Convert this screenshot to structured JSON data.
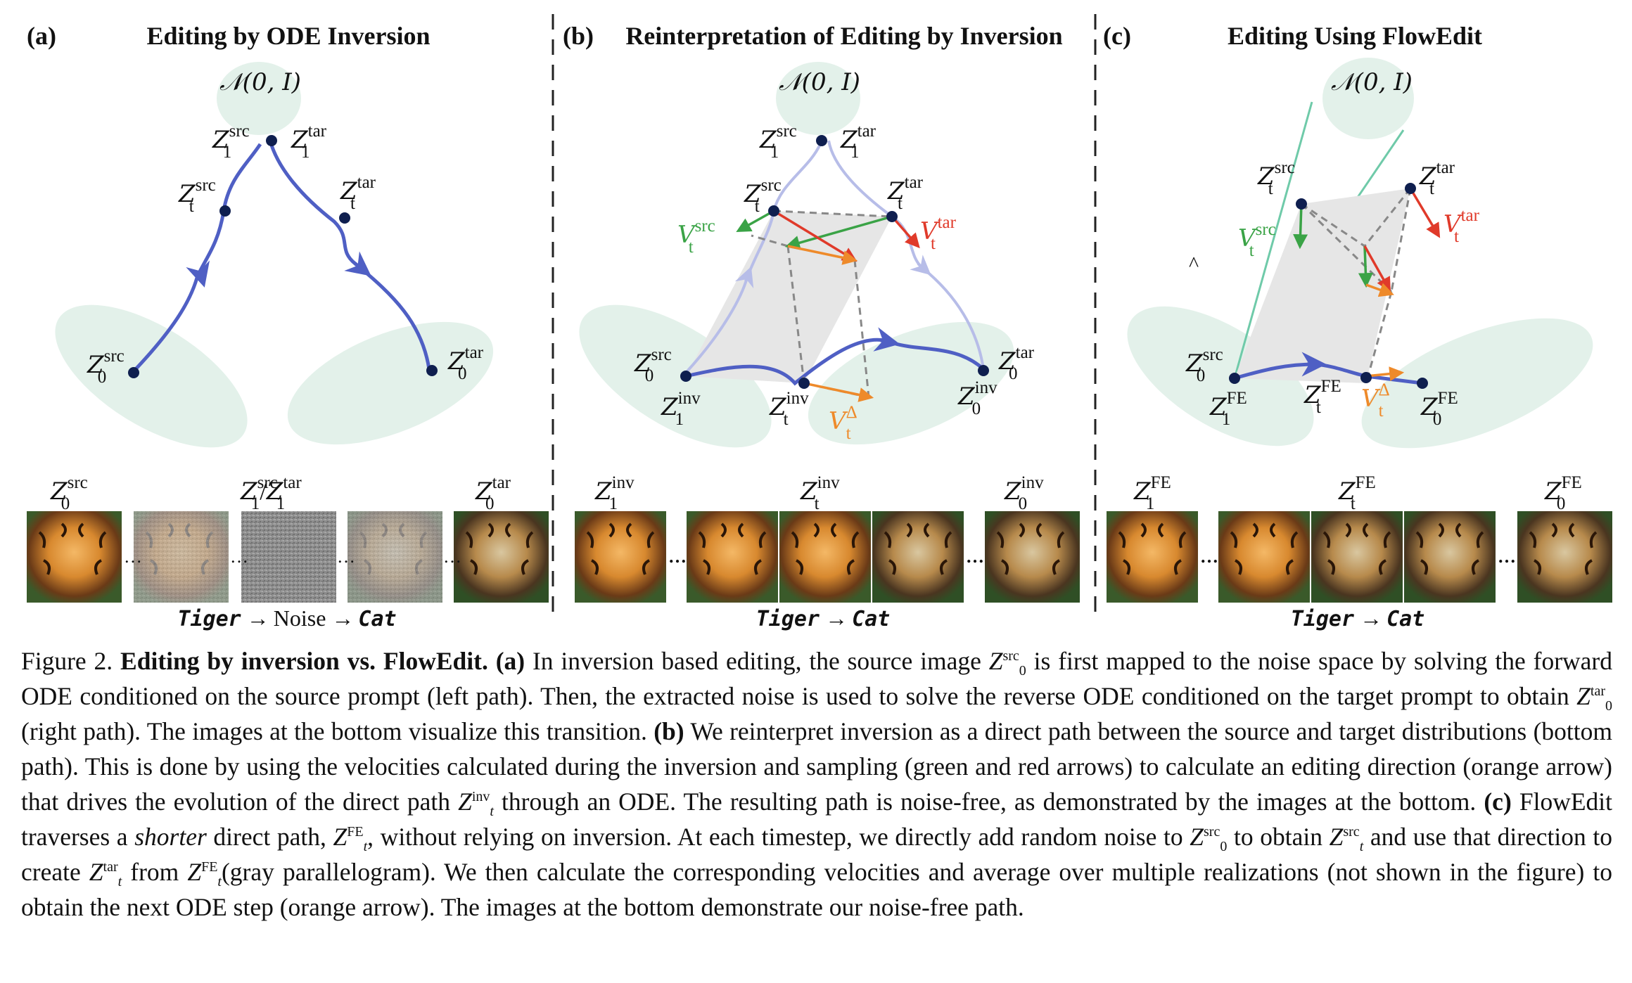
{
  "panels": [
    {
      "tag": "(a)",
      "title": "Editing by ODE Inversion"
    },
    {
      "tag": "(b)",
      "title": "Reinterpretation of Editing by Inversion"
    },
    {
      "tag": "(c)",
      "title": "Editing Using FlowEdit"
    }
  ],
  "noise_dist": "𝒩(0, I)",
  "symbols": {
    "Z": "Z",
    "V": "V",
    "slash": "/",
    "src": "src",
    "tar": "tar",
    "inv": "inv",
    "FE": "FE",
    "delta": "Δ",
    "t": "t",
    "zero": "0",
    "one": "1"
  },
  "prompts": {
    "a": {
      "source": "Tiger",
      "middle": "Noise",
      "target": "Cat",
      "arrow": "→"
    },
    "b": {
      "source": "Tiger",
      "target": "Cat",
      "arrow": "→"
    },
    "c": {
      "source": "Tiger",
      "target": "Cat",
      "arrow": "→"
    }
  },
  "caption": {
    "label": "Figure 2.",
    "bold_title": "Editing by inversion vs. FlowEdit.",
    "a_tag": "(a)",
    "a_text_1": "In inversion based editing, the source image",
    "a_text_2": "is first mapped to the noise space by solving the forward ODE conditioned on the source prompt (left path). Then, the extracted noise is used to solve the reverse ODE conditioned on the target prompt to obtain",
    "a_text_3": "(right path). The images at the bottom visualize this transition.",
    "b_tag": "(b)",
    "b_text_1": "We reinterpret inversion as a direct path between the source and target distributions (bottom path). This is done by using the velocities calculated during the inversion and sampling (green and red arrows) to calculate an editing direction (orange arrow) that drives the evolution of the direct path",
    "b_text_2": "through an ODE. The resulting path is noise-free, as demonstrated by the images at the bottom.",
    "c_tag": "(c)",
    "c_text_1": "FlowEdit traverses a",
    "c_emph": "shorter",
    "c_text_2": "direct path,",
    "c_text_3": ", without relying on inversion. At each timestep, we directly add random noise to",
    "c_text_4": "to obtain",
    "c_text_5": "and use that direction to create",
    "c_text_6": "from",
    "c_text_7": "(gray parallelogram). We then calculate the corresponding velocities and average over multiple realizations (not shown in the figure) to obtain the next ODE step (orange arrow). The images at the bottom demonstrate our noise-free path."
  },
  "colors": {
    "path_blue": "#4f5fc4",
    "path_light": "#b7bde8",
    "node": "#0f1f4f",
    "green": "#3aa346",
    "red": "#e03a2a",
    "orange": "#ee8a2a",
    "blob": "#e3f1ea",
    "parallelogram": "#e6e6e6",
    "teal_line": "#6fcaa9"
  }
}
